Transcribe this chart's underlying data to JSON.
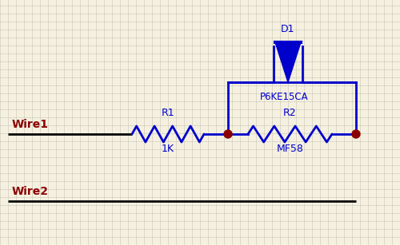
{
  "bg_color": "#f5f0e0",
  "grid_color": "#c8c8b8",
  "wire_color": "#000000",
  "component_color": "#0000cc",
  "label_color": "#8b0000",
  "dot_color": "#8b0000",
  "wire1_label": "Wire1",
  "wire2_label": "Wire2",
  "r1_label": "R1",
  "r1_value": "1K",
  "r2_label": "R2",
  "r2_value": "MF58",
  "d1_label": "D1",
  "d1_value": "P6KE15CA",
  "figsize": [
    5.0,
    3.07
  ],
  "dpi": 100,
  "xlim": [
    0,
    500
  ],
  "ylim": [
    0,
    307
  ]
}
